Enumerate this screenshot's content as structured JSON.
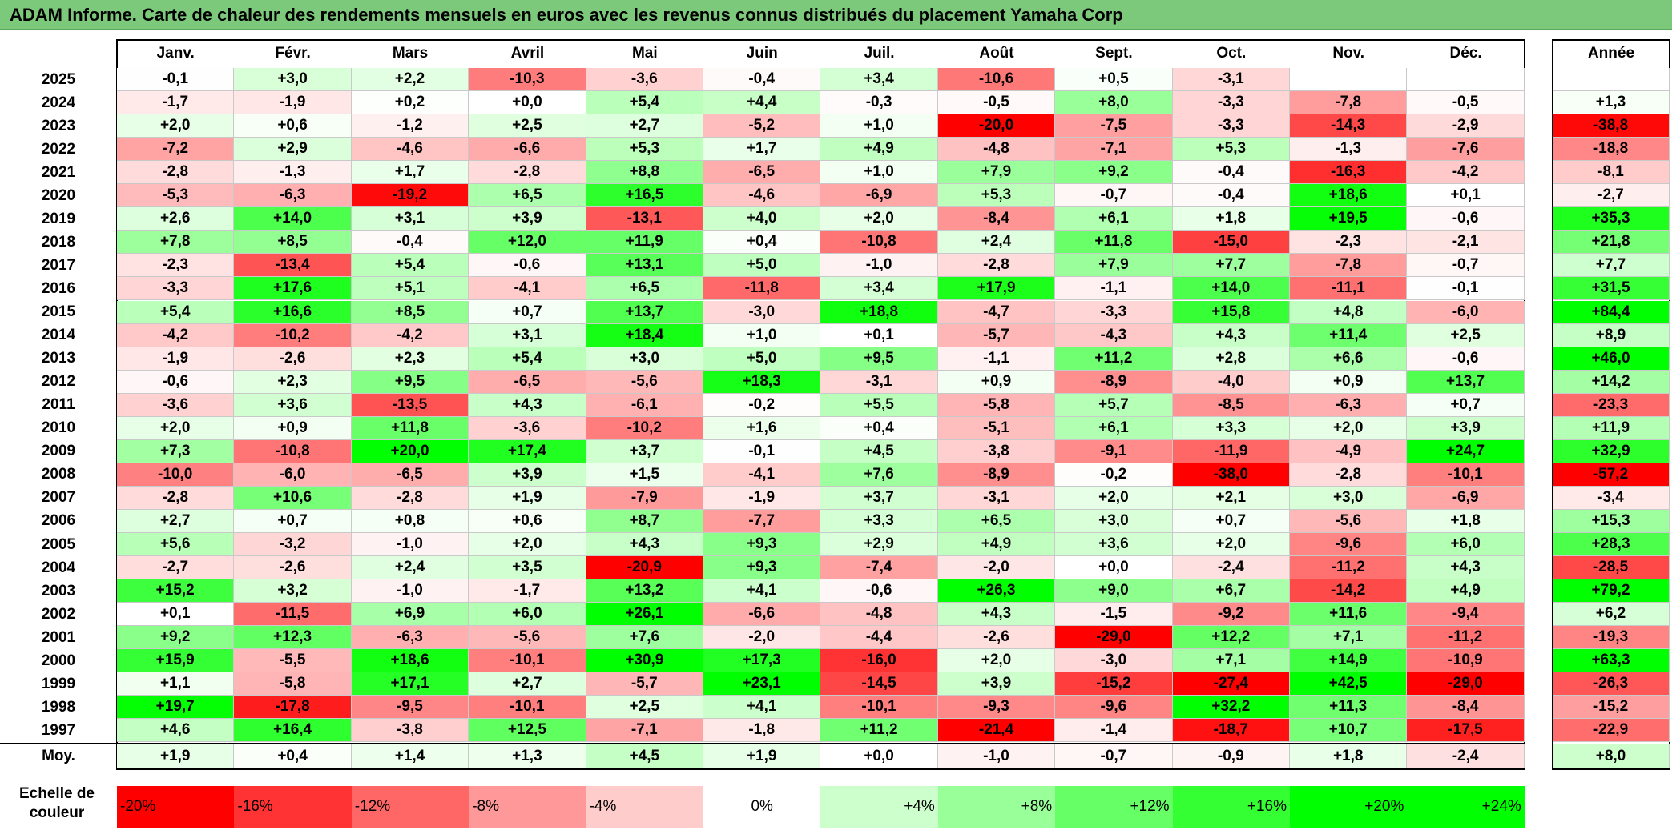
{
  "title": "ADAM Informe. Carte de chaleur des rendements mensuels en euros avec les revenus connus distribués du placement Yamaha Corp",
  "colors": {
    "title_bg": "#7dc97b",
    "neg_max": "#ff0000",
    "pos_max": "#00ff00",
    "neutral": "#ffffff"
  },
  "chart_data": {
    "type": "heatmap",
    "columns": [
      "Janv.",
      "Févr.",
      "Mars",
      "Avril",
      "Mai",
      "Juin",
      "Juil.",
      "Août",
      "Sept.",
      "Oct.",
      "Nov.",
      "Déc."
    ],
    "year_column_label": "Année",
    "rows": [
      {
        "year": "2025",
        "values": [
          "-0,1",
          "+3,0",
          "+2,2",
          "-10,3",
          "-3,6",
          "-0,4",
          "+3,4",
          "-10,6",
          "+0,5",
          "-3,1",
          "",
          ""
        ],
        "annual": ""
      },
      {
        "year": "2024",
        "values": [
          "-1,7",
          "-1,9",
          "+0,2",
          "+0,0",
          "+5,4",
          "+4,4",
          "-0,3",
          "-0,5",
          "+8,0",
          "-3,3",
          "-7,8",
          "-0,5"
        ],
        "annual": "+1,3"
      },
      {
        "year": "2023",
        "values": [
          "+2,0",
          "+0,6",
          "-1,2",
          "+2,5",
          "+2,7",
          "-5,2",
          "+1,0",
          "-20,0",
          "-7,5",
          "-3,3",
          "-14,3",
          "-2,9"
        ],
        "annual": "-38,8"
      },
      {
        "year": "2022",
        "values": [
          "-7,2",
          "+2,9",
          "-4,6",
          "-6,6",
          "+5,3",
          "+1,7",
          "+4,9",
          "-4,8",
          "-7,1",
          "+5,3",
          "-1,3",
          "-7,6"
        ],
        "annual": "-18,8"
      },
      {
        "year": "2021",
        "values": [
          "-2,8",
          "-1,3",
          "+1,7",
          "-2,8",
          "+8,8",
          "-6,5",
          "+1,0",
          "+7,9",
          "+9,2",
          "-0,4",
          "-16,3",
          "-4,2"
        ],
        "annual": "-8,1"
      },
      {
        "year": "2020",
        "values": [
          "-5,3",
          "-6,3",
          "-19,2",
          "+6,5",
          "+16,5",
          "-4,6",
          "-6,9",
          "+5,3",
          "-0,7",
          "-0,4",
          "+18,6",
          "+0,1"
        ],
        "annual": "-2,7"
      },
      {
        "year": "2019",
        "values": [
          "+2,6",
          "+14,0",
          "+3,1",
          "+3,9",
          "-13,1",
          "+4,0",
          "+2,0",
          "-8,4",
          "+6,1",
          "+1,8",
          "+19,5",
          "-0,6"
        ],
        "annual": "+35,3"
      },
      {
        "year": "2018",
        "values": [
          "+7,8",
          "+8,5",
          "-0,4",
          "+12,0",
          "+11,9",
          "+0,4",
          "-10,8",
          "+2,4",
          "+11,8",
          "-15,0",
          "-2,3",
          "-2,1"
        ],
        "annual": "+21,8"
      },
      {
        "year": "2017",
        "values": [
          "-2,3",
          "-13,4",
          "+5,4",
          "-0,6",
          "+13,1",
          "+5,0",
          "-1,0",
          "-2,8",
          "+7,9",
          "+7,7",
          "-7,8",
          "-0,7"
        ],
        "annual": "+7,7"
      },
      {
        "year": "2016",
        "values": [
          "-3,3",
          "+17,6",
          "+5,1",
          "-4,1",
          "+6,5",
          "-11,8",
          "+3,4",
          "+17,9",
          "-1,1",
          "+14,0",
          "-11,1",
          "-0,1"
        ],
        "annual": "+31,5"
      },
      {
        "year": "2015",
        "values": [
          "+5,4",
          "+16,6",
          "+8,5",
          "+0,7",
          "+13,7",
          "-3,0",
          "+18,8",
          "-4,7",
          "-3,3",
          "+15,8",
          "+4,8",
          "-6,0"
        ],
        "annual": "+84,4"
      },
      {
        "year": "2014",
        "values": [
          "-4,2",
          "-10,2",
          "-4,2",
          "+3,1",
          "+18,4",
          "+1,0",
          "+0,1",
          "-5,7",
          "-4,3",
          "+4,3",
          "+11,4",
          "+2,5"
        ],
        "annual": "+8,9"
      },
      {
        "year": "2013",
        "values": [
          "-1,9",
          "-2,6",
          "+2,3",
          "+5,4",
          "+3,0",
          "+5,0",
          "+9,5",
          "-1,1",
          "+11,2",
          "+2,8",
          "+6,6",
          "-0,6"
        ],
        "annual": "+46,0"
      },
      {
        "year": "2012",
        "values": [
          "-0,6",
          "+2,3",
          "+9,5",
          "-6,5",
          "-5,6",
          "+18,3",
          "-3,1",
          "+0,9",
          "-8,9",
          "-4,0",
          "+0,9",
          "+13,7"
        ],
        "annual": "+14,2"
      },
      {
        "year": "2011",
        "values": [
          "-3,6",
          "+3,6",
          "-13,5",
          "+4,3",
          "-6,1",
          "-0,2",
          "+5,5",
          "-5,8",
          "+5,7",
          "-8,5",
          "-6,3",
          "+0,7"
        ],
        "annual": "-23,3"
      },
      {
        "year": "2010",
        "values": [
          "+2,0",
          "+0,9",
          "+11,8",
          "-3,6",
          "-10,2",
          "+1,6",
          "+0,4",
          "-5,1",
          "+6,1",
          "+3,3",
          "+2,0",
          "+3,9"
        ],
        "annual": "+11,9"
      },
      {
        "year": "2009",
        "values": [
          "+7,3",
          "-10,8",
          "+20,0",
          "+17,4",
          "+3,7",
          "-0,1",
          "+4,5",
          "-3,8",
          "-9,1",
          "-11,9",
          "-4,9",
          "+24,7"
        ],
        "annual": "+32,9"
      },
      {
        "year": "2008",
        "values": [
          "-10,0",
          "-6,0",
          "-6,5",
          "+3,9",
          "+1,5",
          "-4,1",
          "+7,6",
          "-8,9",
          "-0,2",
          "-38,0",
          "-2,8",
          "-10,1"
        ],
        "annual": "-57,2"
      },
      {
        "year": "2007",
        "values": [
          "-2,8",
          "+10,6",
          "-2,8",
          "+1,9",
          "-7,9",
          "-1,9",
          "+3,7",
          "-3,1",
          "+2,0",
          "+2,1",
          "+3,0",
          "-6,9"
        ],
        "annual": "-3,4"
      },
      {
        "year": "2006",
        "values": [
          "+2,7",
          "+0,7",
          "+0,8",
          "+0,6",
          "+8,7",
          "-7,7",
          "+3,3",
          "+6,5",
          "+3,0",
          "+0,7",
          "-5,6",
          "+1,8"
        ],
        "annual": "+15,3"
      },
      {
        "year": "2005",
        "values": [
          "+5,6",
          "-3,2",
          "-1,0",
          "+2,0",
          "+4,3",
          "+9,3",
          "+2,9",
          "+4,9",
          "+3,6",
          "+2,0",
          "-9,6",
          "+6,0"
        ],
        "annual": "+28,3"
      },
      {
        "year": "2004",
        "values": [
          "-2,7",
          "-2,6",
          "+2,4",
          "+3,5",
          "-20,9",
          "+9,3",
          "-7,4",
          "-2,0",
          "+0,0",
          "-2,4",
          "-11,2",
          "+4,3"
        ],
        "annual": "-28,5"
      },
      {
        "year": "2003",
        "values": [
          "+15,2",
          "+3,2",
          "-1,0",
          "-1,7",
          "+13,2",
          "+4,1",
          "-0,6",
          "+26,3",
          "+9,0",
          "+6,7",
          "-14,2",
          "+4,9"
        ],
        "annual": "+79,2"
      },
      {
        "year": "2002",
        "values": [
          "+0,1",
          "-11,5",
          "+6,9",
          "+6,0",
          "+26,1",
          "-6,6",
          "-4,8",
          "+4,3",
          "-1,5",
          "-9,2",
          "+11,6",
          "-9,4"
        ],
        "annual": "+6,2"
      },
      {
        "year": "2001",
        "values": [
          "+9,2",
          "+12,3",
          "-6,3",
          "-5,6",
          "+7,6",
          "-2,0",
          "-4,4",
          "-2,6",
          "-29,0",
          "+12,2",
          "+7,1",
          "-11,2"
        ],
        "annual": "-19,3"
      },
      {
        "year": "2000",
        "values": [
          "+15,9",
          "-5,5",
          "+18,6",
          "-10,1",
          "+30,9",
          "+17,3",
          "-16,0",
          "+2,0",
          "-3,0",
          "+7,1",
          "+14,9",
          "-10,9"
        ],
        "annual": "+63,3"
      },
      {
        "year": "1999",
        "values": [
          "+1,1",
          "-5,8",
          "+17,1",
          "+2,7",
          "-5,7",
          "+23,1",
          "-14,5",
          "+3,9",
          "-15,2",
          "-27,4",
          "+42,5",
          "-29,0"
        ],
        "annual": "-26,3"
      },
      {
        "year": "1998",
        "values": [
          "+19,7",
          "-17,8",
          "-9,5",
          "-10,1",
          "+2,5",
          "+4,1",
          "-10,1",
          "-9,3",
          "-9,6",
          "+32,2",
          "+11,3",
          "-8,4"
        ],
        "annual": "-15,2"
      },
      {
        "year": "1997",
        "values": [
          "+4,6",
          "+16,4",
          "-3,8",
          "+12,5",
          "-7,1",
          "-1,8",
          "+11,2",
          "-21,4",
          "-1,4",
          "-18,7",
          "+10,7",
          "-17,5"
        ],
        "annual": "-22,9"
      }
    ],
    "average": {
      "label": "Moy.",
      "values": [
        "+1,9",
        "+0,4",
        "+1,4",
        "+1,3",
        "+4,5",
        "+1,9",
        "+0,0",
        "-1,0",
        "-0,7",
        "-0,9",
        "+1,8",
        "-2,4"
      ],
      "annual": "+8,0"
    },
    "legend": {
      "title": "Echelle de couleur",
      "items": [
        {
          "label": "-20%",
          "value": -20
        },
        {
          "label": "-16%",
          "value": -16
        },
        {
          "label": "-12%",
          "value": -12
        },
        {
          "label": "-8%",
          "value": -8
        },
        {
          "label": "-4%",
          "value": -4
        },
        {
          "label": "0%",
          "value": 0
        },
        {
          "label": "+4%",
          "value": 4
        },
        {
          "label": "+8%",
          "value": 8
        },
        {
          "label": "+12%",
          "value": 12
        },
        {
          "label": "+16%",
          "value": 16
        },
        {
          "label": "+20%",
          "value": 20
        },
        {
          "label": "+24%",
          "value": 24
        }
      ]
    }
  }
}
